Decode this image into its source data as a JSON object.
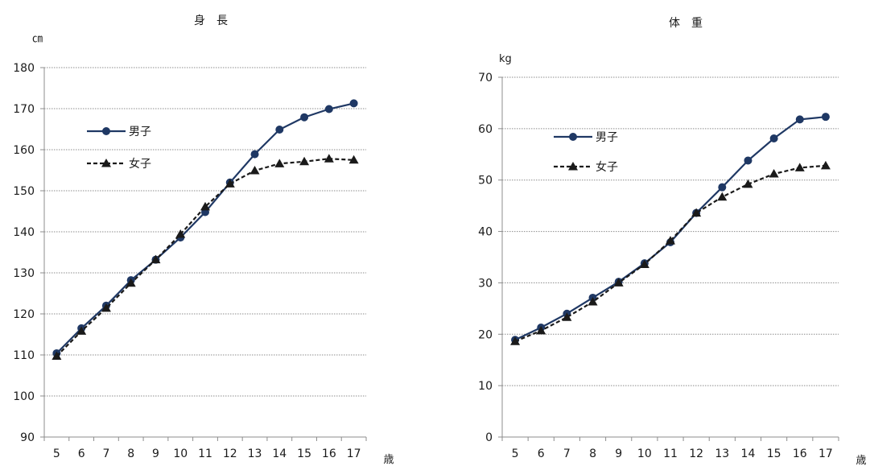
{
  "colors": {
    "boys": "#1F3864",
    "girls": "#1a1a1a",
    "grid": "#8c8c8c",
    "axis": "#8c8c8c"
  },
  "chart_data": [
    {
      "type": "line",
      "title": "身　長",
      "ylabel": "㎝",
      "xlabel": "歳",
      "categories": [
        "5",
        "6",
        "7",
        "8",
        "9",
        "10",
        "11",
        "12",
        "13",
        "14",
        "15",
        "16",
        "17"
      ],
      "ylim": [
        90,
        180
      ],
      "yticks": [
        90,
        100,
        110,
        120,
        130,
        140,
        150,
        160,
        170,
        180
      ],
      "grid": true,
      "legend_position": "upper-left",
      "series": [
        {
          "name": "男子",
          "marker": "circle",
          "line": "solid",
          "values": [
            110.4,
            116.5,
            122.0,
            128.2,
            133.2,
            138.6,
            144.8,
            152.0,
            158.9,
            164.9,
            167.9,
            169.9,
            171.3
          ]
        },
        {
          "name": "女子",
          "marker": "triangle",
          "line": "dashed",
          "values": [
            109.7,
            115.8,
            121.4,
            127.5,
            133.2,
            139.4,
            146.1,
            151.7,
            154.9,
            156.6,
            157.1,
            157.8,
            157.5
          ]
        }
      ]
    },
    {
      "type": "line",
      "title": "体　重",
      "ylabel": "kg",
      "xlabel": "歳",
      "categories": [
        "5",
        "6",
        "7",
        "8",
        "9",
        "10",
        "11",
        "12",
        "13",
        "14",
        "15",
        "16",
        "17"
      ],
      "ylim": [
        0,
        70
      ],
      "yticks": [
        0,
        10,
        20,
        30,
        40,
        50,
        60,
        70
      ],
      "grid": true,
      "legend_position": "upper-left",
      "series": [
        {
          "name": "男子",
          "marker": "circle",
          "line": "solid",
          "values": [
            18.9,
            21.3,
            24.0,
            27.1,
            30.2,
            33.8,
            37.9,
            43.6,
            48.6,
            53.8,
            58.1,
            61.8,
            62.3
          ]
        },
        {
          "name": "女子",
          "marker": "triangle",
          "line": "dashed",
          "values": [
            18.6,
            20.7,
            23.3,
            26.3,
            30.0,
            33.6,
            38.2,
            43.6,
            46.7,
            49.2,
            51.2,
            52.4,
            52.8
          ]
        }
      ]
    }
  ]
}
